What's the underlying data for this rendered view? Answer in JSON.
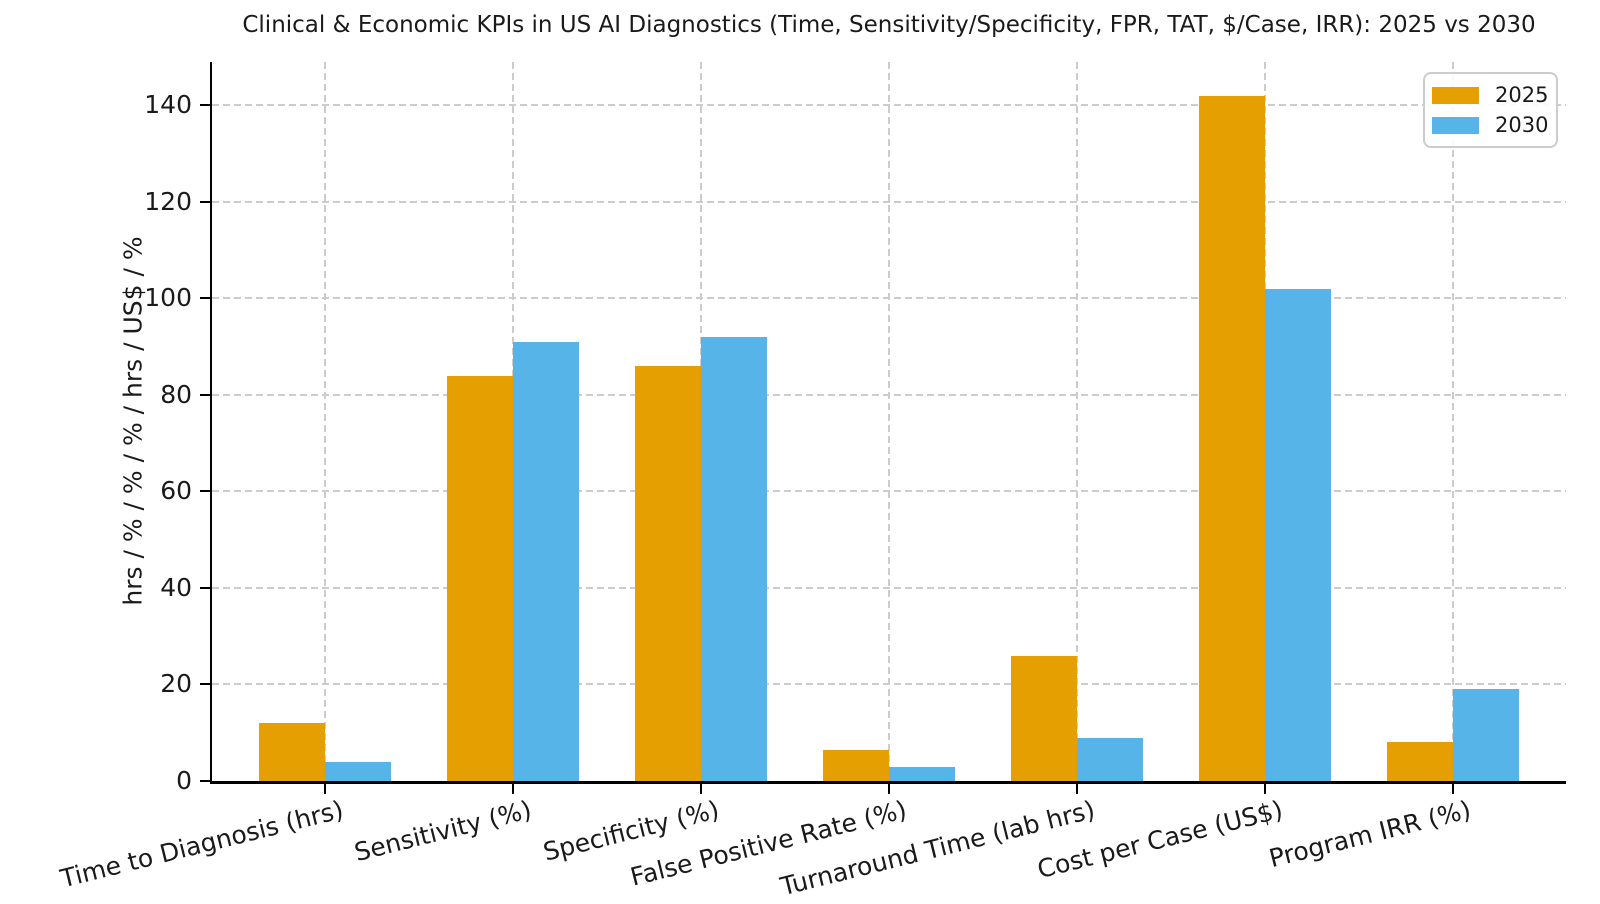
{
  "chart_data": {
    "type": "bar",
    "title": "Clinical & Economic KPIs in US AI Diagnostics (Time, Sensitivity/Specificity, FPR, TAT, $/Case, IRR): 2025 vs 2030",
    "xlabel": "",
    "ylabel": "hrs / % / % / % / hrs / US$ / %",
    "categories": [
      "Time to Diagnosis (hrs)",
      "Sensitivity (%)",
      "Specificity (%)",
      "False Positive Rate (%)",
      "Turnaround Time (lab hrs)",
      "Cost per Case (US$)",
      "Program IRR (%)"
    ],
    "series": [
      {
        "name": "2025",
        "color": "#E69F00",
        "values": [
          12,
          84,
          86,
          6.5,
          26,
          142,
          8
        ]
      },
      {
        "name": "2030",
        "color": "#56B4E9",
        "values": [
          4,
          91,
          92,
          3,
          9,
          102,
          19
        ]
      }
    ],
    "ylim": [
      0,
      149
    ],
    "yticks": [
      0,
      20,
      40,
      60,
      80,
      100,
      120,
      140
    ],
    "grid": "dashed, both axes",
    "legend_position": "upper right"
  },
  "legend": {
    "entries": [
      {
        "label": "2025",
        "color": "#E69F00"
      },
      {
        "label": "2030",
        "color": "#56B4E9"
      }
    ]
  },
  "colors": {
    "bar_2025": "#E69F00",
    "bar_2030": "#56B4E9",
    "grid": "#CCCCCC",
    "axis": "#000000",
    "background": "#FFFFFF",
    "text": "#1A1A1A"
  }
}
